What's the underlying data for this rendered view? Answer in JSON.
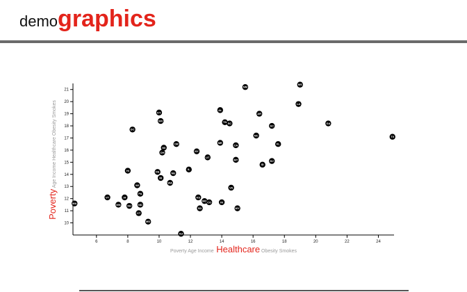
{
  "header": {
    "title_prefix": "demo",
    "title_suffix": "graphics"
  },
  "x_axis_labels": [
    {
      "text": "Poverty",
      "active": false
    },
    {
      "text": "Age",
      "active": false
    },
    {
      "text": "Income",
      "active": false
    },
    {
      "text": "Healthcare",
      "active": true
    },
    {
      "text": "Obesity",
      "active": false
    },
    {
      "text": "Smokes",
      "active": false
    }
  ],
  "y_axis_labels": [
    {
      "text": "Poverty",
      "active": true
    },
    {
      "text": "Age",
      "active": false
    },
    {
      "text": "Income",
      "active": false
    },
    {
      "text": "Healthcare",
      "active": false
    },
    {
      "text": "Obesity",
      "active": false
    },
    {
      "text": "Smokes",
      "active": false
    }
  ],
  "colors": {
    "accent": "#e3241b",
    "inactive": "#9a9a9a",
    "point": "#000000",
    "rule": "#6a6a6a"
  },
  "chart_data": {
    "type": "scatter",
    "x_field": "Healthcare",
    "y_field": "Poverty",
    "xlim": [
      4.5,
      25
    ],
    "ylim": [
      9,
      21.5
    ],
    "xticks": [
      6,
      8,
      10,
      12,
      14,
      16,
      18,
      20,
      22,
      24
    ],
    "yticks": [
      10,
      11,
      12,
      13,
      14,
      15,
      16,
      17,
      18,
      19,
      20,
      21
    ],
    "points": [
      {
        "abbr": "MA",
        "x": 4.6,
        "y": 11.6
      },
      {
        "abbr": "VT",
        "x": 6.7,
        "y": 12.1
      },
      {
        "abbr": "MN",
        "x": 7.4,
        "y": 11.5
      },
      {
        "abbr": "IA",
        "x": 7.8,
        "y": 12.1
      },
      {
        "abbr": "HI",
        "x": 8.0,
        "y": 14.3
      },
      {
        "abbr": "NH",
        "x": 8.1,
        "y": 11.4
      },
      {
        "abbr": "DC",
        "x": 8.3,
        "y": 17.7
      },
      {
        "abbr": "WI",
        "x": 8.6,
        "y": 13.1
      },
      {
        "abbr": "ND",
        "x": 8.8,
        "y": 11.5
      },
      {
        "abbr": "PA",
        "x": 8.8,
        "y": 12.4
      },
      {
        "abbr": "CT",
        "x": 8.7,
        "y": 10.8
      },
      {
        "abbr": "MD",
        "x": 9.3,
        "y": 10.1
      },
      {
        "abbr": "DE",
        "x": 9.9,
        "y": 14.2
      },
      {
        "abbr": "KY",
        "x": 10.0,
        "y": 19.1
      },
      {
        "abbr": "WV",
        "x": 10.1,
        "y": 18.4
      },
      {
        "abbr": "MI",
        "x": 10.3,
        "y": 16.2
      },
      {
        "abbr": "OH",
        "x": 10.2,
        "y": 15.8
      },
      {
        "abbr": "RI",
        "x": 10.1,
        "y": 13.7
      },
      {
        "abbr": "WA",
        "x": 10.7,
        "y": 13.3
      },
      {
        "abbr": "NE",
        "x": 10.9,
        "y": 14.1
      },
      {
        "abbr": "OR",
        "x": 11.1,
        "y": 16.5
      },
      {
        "abbr": "NJ",
        "x": 11.4,
        "y": 9.1
      },
      {
        "abbr": "IL",
        "x": 11.9,
        "y": 14.4
      },
      {
        "abbr": "NY",
        "x": 12.4,
        "y": 15.9
      },
      {
        "abbr": "KS",
        "x": 12.5,
        "y": 12.1
      },
      {
        "abbr": "SD",
        "x": 12.6,
        "y": 11.2
      },
      {
        "abbr": "MO",
        "x": 12.9,
        "y": 11.8
      },
      {
        "abbr": "UT",
        "x": 13.1,
        "y": 15.4
      },
      {
        "abbr": "CO",
        "x": 13.2,
        "y": 11.7
      },
      {
        "abbr": "IN",
        "x": 14.0,
        "y": 11.7
      },
      {
        "abbr": "AL",
        "x": 13.9,
        "y": 19.3
      },
      {
        "abbr": "TN",
        "x": 14.2,
        "y": 18.3
      },
      {
        "abbr": "SC",
        "x": 14.5,
        "y": 18.2
      },
      {
        "abbr": "ME",
        "x": 13.9,
        "y": 16.6
      },
      {
        "abbr": "VA",
        "x": 14.6,
        "y": 12.9
      },
      {
        "abbr": "CA",
        "x": 14.9,
        "y": 16.4
      },
      {
        "abbr": "MT",
        "x": 14.9,
        "y": 15.2
      },
      {
        "abbr": "WY",
        "x": 15.0,
        "y": 11.2
      },
      {
        "abbr": "NM",
        "x": 15.5,
        "y": 21.2
      },
      {
        "abbr": "NC",
        "x": 16.2,
        "y": 17.2
      },
      {
        "abbr": "AR",
        "x": 16.4,
        "y": 19.0
      },
      {
        "abbr": "ID",
        "x": 16.6,
        "y": 14.8
      },
      {
        "abbr": "NV",
        "x": 17.2,
        "y": 15.1
      },
      {
        "abbr": "SC2",
        "x": 17.2,
        "y": 18.0
      },
      {
        "abbr": "FL",
        "x": 17.6,
        "y": 16.5
      },
      {
        "abbr": "MS",
        "x": 19.0,
        "y": 21.4
      },
      {
        "abbr": "LA",
        "x": 18.9,
        "y": 19.8
      },
      {
        "abbr": "GA",
        "x": 20.8,
        "y": 18.2
      },
      {
        "abbr": "TX",
        "x": 24.9,
        "y": 17.1
      }
    ]
  }
}
